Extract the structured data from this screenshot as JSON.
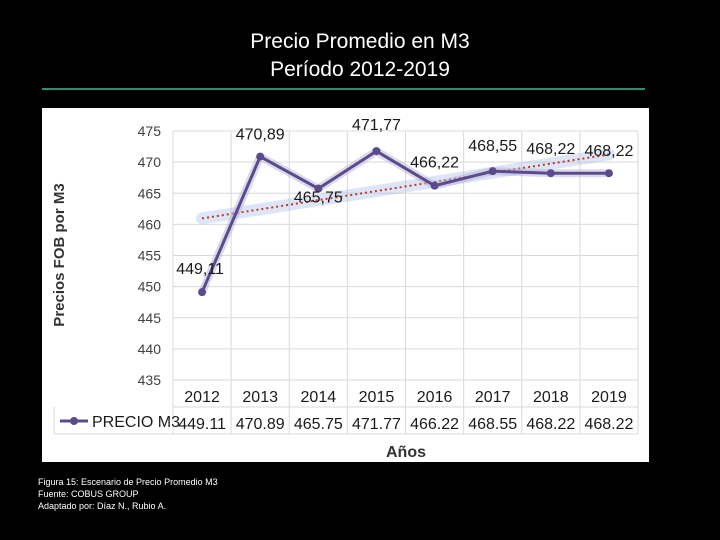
{
  "title": {
    "line1": "Precio Promedio en M3",
    "line2": "Período 2012-2019"
  },
  "caption": {
    "line1": "Figura 15: Escenario de Precio Promedio M3",
    "line2": "Fuente: COBUS GROUP",
    "line3": "Adaptado por: Díaz N., Rubio A."
  },
  "colors": {
    "background": "#000000",
    "rule": "#2f8f6a",
    "series": "#5b4a8c",
    "trend": "#c0392b"
  },
  "chart_data": {
    "type": "line",
    "categories": [
      "2012",
      "2013",
      "2014",
      "2015",
      "2016",
      "2017",
      "2018",
      "2019"
    ],
    "series": [
      {
        "name": "PRECIO M3",
        "values": [
          449.11,
          470.89,
          465.75,
          471.77,
          466.22,
          468.55,
          468.22,
          468.22
        ],
        "labels": [
          "449,11",
          "470,89",
          "465,75",
          "471,77",
          "466,22",
          "468,55",
          "468,22",
          "468,22"
        ],
        "table_labels": [
          "449.11",
          "470.89",
          "465.75",
          "471.77",
          "466.22",
          "468.55",
          "468.22",
          "468.22"
        ]
      }
    ],
    "trendline": "linear",
    "ylabel": "Precios FOB por M3",
    "xlabel": "Años",
    "ylim": [
      435,
      475
    ],
    "yticks": [
      "435",
      "440",
      "445",
      "450",
      "455",
      "460",
      "465",
      "470",
      "475"
    ],
    "grid": true,
    "data_table": true
  }
}
